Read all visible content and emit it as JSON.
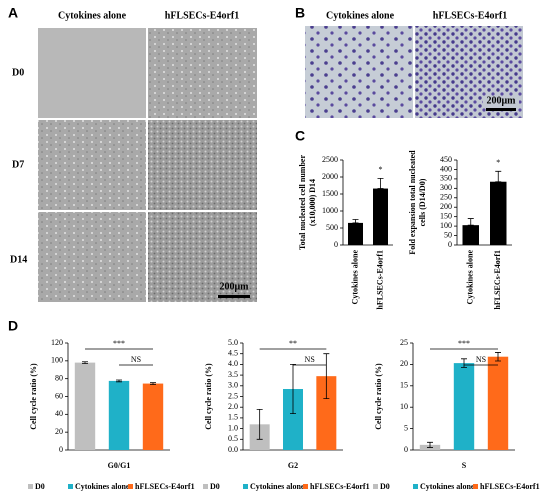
{
  "panel_labels": [
    "A",
    "B",
    "C",
    "D"
  ],
  "panel_a": {
    "columns": [
      "Cytokines alone",
      "hFLSECs-E4orf1"
    ],
    "rows": [
      "D0",
      "D7",
      "D14"
    ],
    "scale_bar": "200μm"
  },
  "panel_b": {
    "columns": [
      "Cytokines alone",
      "hFLSECs-E4orf1"
    ],
    "scale_bar": "200μm"
  },
  "chart_data": [
    {
      "type": "bar",
      "y_label": [
        "Total nucleated cell number",
        "(x10,000) D14"
      ],
      "categories": [
        "Cytokines alone",
        "hFLSECs-E4orf1"
      ],
      "values": [
        650,
        1660
      ],
      "errors": [
        100,
        300
      ],
      "color": "#000000",
      "ylim": [
        0,
        2500
      ],
      "yticks": [
        0,
        500,
        1000,
        1500,
        2000,
        2500
      ],
      "annotations": [
        "*"
      ]
    },
    {
      "type": "bar",
      "y_label": [
        "Fold expansion total nucleated",
        "cells (D14/D0)"
      ],
      "categories": [
        "Cytokines alone",
        "hFLSECs-E4orf1"
      ],
      "values": [
        105,
        335
      ],
      "errors": [
        35,
        55
      ],
      "color": "#000000",
      "ylim": [
        0,
        450
      ],
      "yticks": [
        0,
        50,
        100,
        150,
        200,
        250,
        300,
        350,
        400,
        450
      ],
      "annotations": [
        "*"
      ]
    },
    {
      "type": "grouped",
      "title": "G0/G1",
      "y_label": [
        "Cell cycle ratio (%)"
      ],
      "series": [
        {
          "name": "D0",
          "color": "#bfbfbf",
          "values": [
            98
          ],
          "errors": [
            1
          ]
        },
        {
          "name": "Cytokines alone",
          "color": "#1fb1c8",
          "values": [
            77.5
          ],
          "errors": [
            1
          ]
        },
        {
          "name": "hFLSECs-E4orf1",
          "color": "#ff6a1a",
          "values": [
            74.5
          ],
          "errors": [
            1
          ]
        }
      ],
      "ylim": [
        0,
        120
      ],
      "yticks": [
        0,
        20,
        40,
        60,
        80,
        100,
        120
      ],
      "annotations": [
        "***",
        "NS"
      ]
    },
    {
      "type": "grouped",
      "title": "G2",
      "y_label": [
        "Cell cycle ratio (%)"
      ],
      "series": [
        {
          "name": "D0",
          "color": "#bfbfbf",
          "values": [
            1.2
          ],
          "errors": [
            0.7
          ]
        },
        {
          "name": "Cytokines alone",
          "color": "#1fb1c8",
          "values": [
            2.85
          ],
          "errors": [
            1.15
          ]
        },
        {
          "name": "hFLSECs-E4orf1",
          "color": "#ff6a1a",
          "values": [
            3.45
          ],
          "errors": [
            1.05
          ]
        }
      ],
      "ylim": [
        0,
        5
      ],
      "yticks": [
        {
          "value": 0,
          "label": "0.0"
        },
        0.5,
        {
          "value": 1,
          "label": "1.0"
        },
        1.5,
        {
          "value": 2,
          "label": "2.0"
        },
        2.5,
        {
          "value": 3,
          "label": "3.0"
        },
        3.5,
        {
          "value": 4,
          "label": "4.0"
        },
        4.5,
        {
          "value": 5,
          "label": "5.0"
        }
      ],
      "annotations": [
        "**",
        "NS"
      ]
    },
    {
      "type": "grouped",
      "title": "S",
      "y_label": [
        "Cell cycle ratio (%)"
      ],
      "series": [
        {
          "name": "D0",
          "color": "#bfbfbf",
          "values": [
            1.2
          ],
          "errors": [
            0.6
          ]
        },
        {
          "name": "Cytokines alone",
          "color": "#1fb1c8",
          "values": [
            20.3
          ],
          "errors": [
            1
          ]
        },
        {
          "name": "hFLSECs-E4orf1",
          "color": "#ff6a1a",
          "values": [
            21.8
          ],
          "errors": [
            1
          ]
        }
      ],
      "ylim": [
        0,
        25
      ],
      "yticks": [
        0,
        5,
        10,
        15,
        20,
        25
      ],
      "annotations": [
        "***",
        "NS"
      ]
    }
  ]
}
